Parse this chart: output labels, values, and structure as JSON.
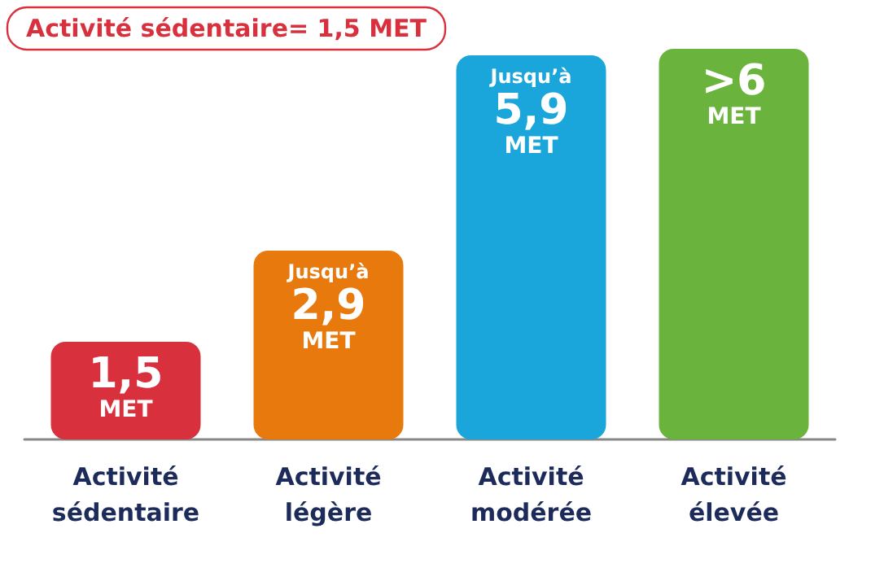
{
  "chart_data": {
    "type": "bar",
    "title": "Activité sédentaire= 1,5 MET",
    "categories": [
      "Activité sédentaire",
      "Activité légère",
      "Activité modérée",
      "Activité élevée"
    ],
    "values": [
      1.5,
      2.9,
      5.9,
      6
    ],
    "colors": [
      "#d9303e",
      "#e8790d",
      "#1ba6db",
      "#6ab43e"
    ],
    "value_labels": [
      "1,5 MET",
      "Jusqu’à 2,9 MET",
      "Jusqu’à 5,9 MET",
      ">6 MET"
    ],
    "tick_labels": "x"
  }
}
